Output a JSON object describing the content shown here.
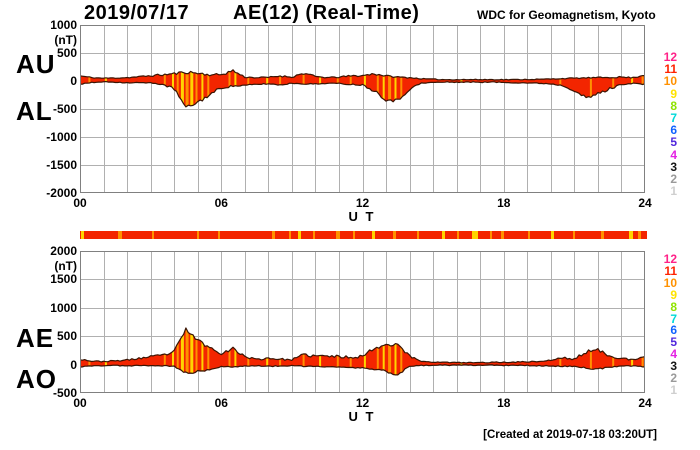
{
  "header": {
    "date": "2019/07/17",
    "title": "AE(12) (Real-Time)",
    "source": "WDC for Geomagnetism, Kyoto"
  },
  "footer": {
    "created": "[Created at 2019-07-18 03:20UT]"
  },
  "station_count_scale": {
    "values": [
      12,
      11,
      10,
      9,
      8,
      7,
      6,
      5,
      4,
      3,
      2,
      1
    ],
    "colors": [
      "#ff2288",
      "#ff2200",
      "#ff9100",
      "#ffe300",
      "#8fe300",
      "#00d9d9",
      "#0f62ff",
      "#5128dd",
      "#e321e3",
      "#141414",
      "#9a9a9a",
      "#cfcfcf"
    ]
  },
  "colors": {
    "fill": "#f32500",
    "outline": "#3a1403",
    "grid": "#b0b0b0",
    "frame": "#808080",
    "orange": "#ff9100",
    "yellow": "#ffd500"
  },
  "chart_data": [
    {
      "type": "area",
      "name": "AU / AL indices",
      "labels": {
        "upper": "AU",
        "lower": "AL"
      },
      "unit": "(nT)",
      "xlabel": "U T",
      "x_range": [
        0,
        24
      ],
      "x_step_hours": 0.5,
      "ylim": [
        -2000,
        1000
      ],
      "yticks": [
        1000,
        500,
        0,
        -500,
        -1000,
        -1500,
        -2000
      ],
      "xticks": [
        "00",
        "06",
        "12",
        "18",
        "24"
      ],
      "xtick_hours": [
        0,
        6,
        12,
        18,
        24
      ],
      "grid": true,
      "series": [
        {
          "name": "AU",
          "values": [
            90,
            60,
            50,
            55,
            60,
            75,
            95,
            110,
            130,
            160,
            140,
            110,
            115,
            185,
            70,
            60,
            65,
            90,
            70,
            140,
            80,
            60,
            70,
            90,
            95,
            130,
            90,
            70,
            60,
            40,
            30,
            25,
            25,
            25,
            25,
            25,
            25,
            25,
            30,
            30,
            35,
            45,
            50,
            55,
            60,
            65,
            70,
            60,
            110
          ]
        },
        {
          "name": "AL",
          "values": [
            -55,
            -30,
            -15,
            -20,
            -30,
            -30,
            -35,
            -60,
            -140,
            -480,
            -380,
            -250,
            -120,
            -90,
            -80,
            -60,
            -50,
            -70,
            -40,
            -50,
            -55,
            -40,
            -45,
            -60,
            -70,
            -170,
            -330,
            -350,
            -140,
            -40,
            -25,
            -20,
            -20,
            -20,
            -20,
            -20,
            -25,
            -30,
            -35,
            -40,
            -50,
            -80,
            -160,
            -310,
            -230,
            -140,
            -60,
            -40,
            -60
          ]
        }
      ],
      "stripes": [
        {
          "h": 0.4,
          "c": "orange",
          "w": 2
        },
        {
          "h": 1.1,
          "c": "yellow",
          "w": 2
        },
        {
          "h": 3.6,
          "c": "orange",
          "w": 2
        },
        {
          "h": 3.95,
          "c": "yellow",
          "w": 2
        },
        {
          "h": 4.15,
          "c": "orange",
          "w": 2
        },
        {
          "h": 4.35,
          "c": "yellow",
          "w": 3
        },
        {
          "h": 4.55,
          "c": "orange",
          "w": 3
        },
        {
          "h": 4.75,
          "c": "yellow",
          "w": 3
        },
        {
          "h": 4.95,
          "c": "orange",
          "w": 2
        },
        {
          "h": 5.2,
          "c": "yellow",
          "w": 2
        },
        {
          "h": 5.45,
          "c": "orange",
          "w": 2
        },
        {
          "h": 6.35,
          "c": "orange",
          "w": 2
        },
        {
          "h": 6.6,
          "c": "yellow",
          "w": 2
        },
        {
          "h": 7.15,
          "c": "orange",
          "w": 2
        },
        {
          "h": 7.95,
          "c": "yellow",
          "w": 2
        },
        {
          "h": 8.5,
          "c": "orange",
          "w": 2
        },
        {
          "h": 9.5,
          "c": "orange",
          "w": 2
        },
        {
          "h": 10.2,
          "c": "yellow",
          "w": 2
        },
        {
          "h": 10.95,
          "c": "orange",
          "w": 2
        },
        {
          "h": 11.5,
          "c": "orange",
          "w": 2
        },
        {
          "h": 12.1,
          "c": "yellow",
          "w": 2
        },
        {
          "h": 12.65,
          "c": "orange",
          "w": 2
        },
        {
          "h": 12.9,
          "c": "yellow",
          "w": 2
        },
        {
          "h": 13.15,
          "c": "orange",
          "w": 3
        },
        {
          "h": 13.4,
          "c": "yellow",
          "w": 2
        },
        {
          "h": 13.65,
          "c": "orange",
          "w": 2
        },
        {
          "h": 16.2,
          "c": "yellow",
          "w": 2
        },
        {
          "h": 20.4,
          "c": "orange",
          "w": 2
        },
        {
          "h": 21.7,
          "c": "orange",
          "w": 2
        },
        {
          "h": 22.65,
          "c": "orange",
          "w": 2
        },
        {
          "h": 23.45,
          "c": "yellow",
          "w": 2
        },
        {
          "h": 23.9,
          "c": "orange",
          "w": 2
        }
      ]
    },
    {
      "type": "area",
      "name": "AE / AO indices",
      "labels": {
        "upper": "AE",
        "lower": "AO"
      },
      "unit": "(nT)",
      "xlabel": "U T",
      "x_range": [
        0,
        24
      ],
      "x_step_hours": 0.5,
      "ylim": [
        -500,
        2000
      ],
      "yticks": [
        2000,
        1500,
        1000,
        500,
        0,
        -500
      ],
      "xticks": [
        "00",
        "06",
        "12",
        "18",
        "24"
      ],
      "xtick_hours": [
        0,
        6,
        12,
        18,
        24
      ],
      "grid": true,
      "series": [
        {
          "name": "AE",
          "values": [
            100,
            60,
            55,
            65,
            80,
            110,
            135,
            160,
            230,
            620,
            430,
            300,
            205,
            280,
            145,
            90,
            115,
            95,
            85,
            170,
            150,
            150,
            140,
            130,
            150,
            290,
            350,
            365,
            145,
            60,
            45,
            40,
            35,
            35,
            35,
            40,
            40,
            45,
            50,
            55,
            75,
            120,
            95,
            225,
            255,
            160,
            110,
            80,
            130
          ]
        },
        {
          "name": "AO",
          "values": [
            -40,
            -20,
            -20,
            -15,
            -20,
            -15,
            -15,
            -20,
            -30,
            -150,
            -120,
            -100,
            -30,
            -40,
            -25,
            -20,
            -30,
            -25,
            -20,
            -30,
            -30,
            -40,
            -40,
            -55,
            -60,
            -85,
            -115,
            -175,
            -30,
            -15,
            -10,
            -10,
            -10,
            -10,
            -10,
            -10,
            -15,
            -15,
            -15,
            -20,
            -25,
            -30,
            -30,
            -60,
            -80,
            -45,
            -30,
            -20,
            -40
          ]
        }
      ],
      "stripes": [
        {
          "h": 0.4,
          "c": "orange",
          "w": 2
        },
        {
          "h": 1.1,
          "c": "yellow",
          "w": 2
        },
        {
          "h": 3.6,
          "c": "orange",
          "w": 2
        },
        {
          "h": 3.95,
          "c": "yellow",
          "w": 2
        },
        {
          "h": 4.15,
          "c": "orange",
          "w": 2
        },
        {
          "h": 4.35,
          "c": "yellow",
          "w": 3
        },
        {
          "h": 4.55,
          "c": "orange",
          "w": 3
        },
        {
          "h": 4.75,
          "c": "yellow",
          "w": 3
        },
        {
          "h": 4.95,
          "c": "orange",
          "w": 2
        },
        {
          "h": 5.2,
          "c": "yellow",
          "w": 2
        },
        {
          "h": 5.45,
          "c": "orange",
          "w": 2
        },
        {
          "h": 6.35,
          "c": "orange",
          "w": 2
        },
        {
          "h": 6.6,
          "c": "yellow",
          "w": 2
        },
        {
          "h": 7.15,
          "c": "orange",
          "w": 2
        },
        {
          "h": 7.95,
          "c": "yellow",
          "w": 2
        },
        {
          "h": 8.5,
          "c": "orange",
          "w": 2
        },
        {
          "h": 9.5,
          "c": "orange",
          "w": 2
        },
        {
          "h": 10.2,
          "c": "yellow",
          "w": 2
        },
        {
          "h": 10.95,
          "c": "orange",
          "w": 2
        },
        {
          "h": 11.5,
          "c": "orange",
          "w": 2
        },
        {
          "h": 12.1,
          "c": "yellow",
          "w": 2
        },
        {
          "h": 12.65,
          "c": "orange",
          "w": 2
        },
        {
          "h": 12.9,
          "c": "yellow",
          "w": 2
        },
        {
          "h": 13.15,
          "c": "orange",
          "w": 3
        },
        {
          "h": 13.4,
          "c": "yellow",
          "w": 2
        },
        {
          "h": 13.65,
          "c": "orange",
          "w": 2
        },
        {
          "h": 16.2,
          "c": "yellow",
          "w": 2
        },
        {
          "h": 20.4,
          "c": "orange",
          "w": 2
        },
        {
          "h": 21.7,
          "c": "orange",
          "w": 2
        },
        {
          "h": 22.65,
          "c": "orange",
          "w": 2
        },
        {
          "h": 23.45,
          "c": "yellow",
          "w": 2
        },
        {
          "h": 23.9,
          "c": "orange",
          "w": 2
        }
      ]
    }
  ],
  "colorbar": {
    "base": "#f32500",
    "stripes": [
      {
        "h": 0.12,
        "c": "yellow",
        "w": 3
      },
      {
        "h": 1.7,
        "c": "orange",
        "w": 4
      },
      {
        "h": 3.1,
        "c": "orange",
        "w": 2
      },
      {
        "h": 5.0,
        "c": "orange",
        "w": 2
      },
      {
        "h": 5.9,
        "c": "orange",
        "w": 2
      },
      {
        "h": 8.2,
        "c": "orange",
        "w": 3
      },
      {
        "h": 8.9,
        "c": "orange",
        "w": 2
      },
      {
        "h": 9.3,
        "c": "yellow",
        "w": 3
      },
      {
        "h": 9.9,
        "c": "orange",
        "w": 2
      },
      {
        "h": 10.9,
        "c": "orange",
        "w": 4
      },
      {
        "h": 11.6,
        "c": "orange",
        "w": 2
      },
      {
        "h": 12.4,
        "c": "yellow",
        "w": 3
      },
      {
        "h": 13.3,
        "c": "orange",
        "w": 3
      },
      {
        "h": 14.3,
        "c": "orange",
        "w": 2
      },
      {
        "h": 15.4,
        "c": "yellow",
        "w": 3
      },
      {
        "h": 16.0,
        "c": "orange",
        "w": 2
      },
      {
        "h": 16.7,
        "c": "yellow",
        "w": 6
      },
      {
        "h": 17.4,
        "c": "orange",
        "w": 2
      },
      {
        "h": 17.9,
        "c": "orange",
        "w": 3
      },
      {
        "h": 19.0,
        "c": "orange",
        "w": 2
      },
      {
        "h": 20.0,
        "c": "yellow",
        "w": 3
      },
      {
        "h": 20.9,
        "c": "orange",
        "w": 2
      },
      {
        "h": 22.1,
        "c": "orange",
        "w": 3
      },
      {
        "h": 23.3,
        "c": "yellow",
        "w": 4
      },
      {
        "h": 23.7,
        "c": "orange",
        "w": 3
      }
    ]
  }
}
